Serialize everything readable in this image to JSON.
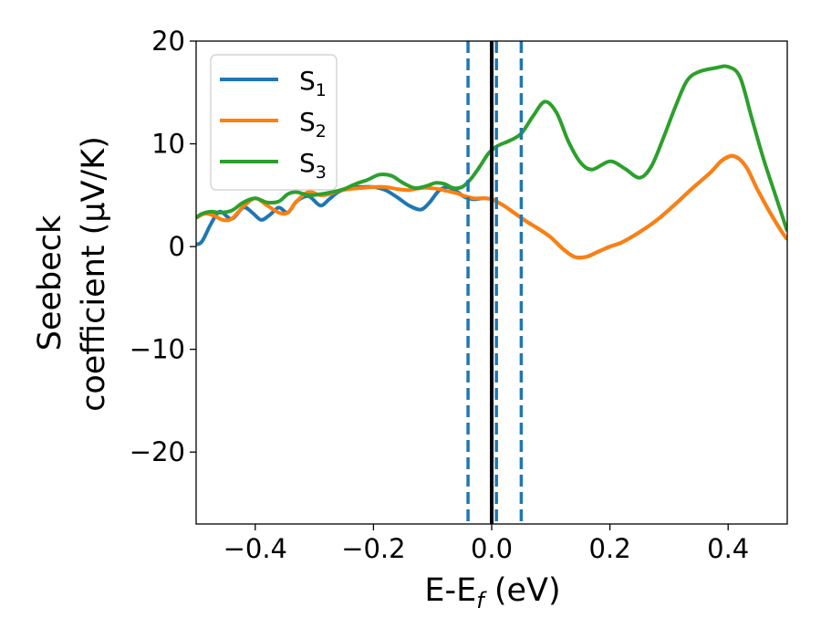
{
  "chart_data": {
    "type": "line",
    "title": "",
    "xlabel": {
      "main": "E-E",
      "sub": "f",
      "unit": " (eV)"
    },
    "ylabel": {
      "line1": "Seebeck",
      "line2": "coefficient  (μV/K)"
    },
    "xlim": [
      -0.5,
      0.5
    ],
    "ylim": [
      -27,
      20
    ],
    "xticks": [
      -0.4,
      -0.2,
      0.0,
      0.2,
      0.4
    ],
    "xtick_labels": [
      "−0.4",
      "−0.2",
      "0.0",
      "0.2",
      "0.4"
    ],
    "yticks": [
      -20,
      -10,
      0,
      10,
      20
    ],
    "ytick_labels": [
      "−20",
      "−10",
      "0",
      "10",
      "20"
    ],
    "grid": false,
    "legend_position": "upper-left",
    "vlines": [
      {
        "x": 0.0,
        "style": "solid",
        "color": "#000000"
      },
      {
        "x": -0.04,
        "style": "dashed",
        "color": "#1f77b4"
      },
      {
        "x": 0.008,
        "style": "dashed",
        "color": "#1f77b4"
      },
      {
        "x": 0.05,
        "style": "dashed",
        "color": "#1f77b4"
      }
    ],
    "series": [
      {
        "name": "S",
        "sub": "1",
        "color": "#1f77b4",
        "x": [
          -0.5,
          -0.49,
          -0.475,
          -0.46,
          -0.44,
          -0.42,
          -0.405,
          -0.39,
          -0.375,
          -0.36,
          -0.345,
          -0.33,
          -0.31,
          -0.29,
          -0.275,
          -0.26,
          -0.24,
          -0.22,
          -0.2,
          -0.18,
          -0.16,
          -0.14,
          -0.12,
          -0.105,
          -0.09,
          -0.075,
          -0.06,
          -0.045,
          -0.03,
          -0.015,
          0.0,
          0.02,
          0.04,
          0.06,
          0.08,
          0.1,
          0.12,
          0.14,
          0.16,
          0.18,
          0.2,
          0.22,
          0.25,
          0.28,
          0.31,
          0.34,
          0.37,
          0.39,
          0.41,
          0.43,
          0.45,
          0.47,
          0.49,
          0.5
        ],
        "y": [
          0.2,
          0.5,
          2.2,
          3.4,
          2.7,
          3.8,
          3.3,
          2.6,
          3.1,
          3.8,
          3.3,
          4.4,
          4.9,
          4.0,
          4.6,
          5.3,
          5.7,
          5.8,
          5.8,
          5.5,
          4.8,
          4.0,
          3.6,
          4.3,
          5.4,
          5.8,
          5.4,
          4.8,
          4.6,
          4.7,
          4.6,
          4.0,
          3.2,
          2.4,
          1.7,
          0.9,
          -0.2,
          -1.0,
          -1.0,
          -0.5,
          0.0,
          0.4,
          1.4,
          2.6,
          4.1,
          5.7,
          7.2,
          8.4,
          8.8,
          7.8,
          5.5,
          3.4,
          1.5,
          0.7
        ]
      },
      {
        "name": "S",
        "sub": "2",
        "color": "#ff7f0e",
        "x": [
          -0.5,
          -0.485,
          -0.47,
          -0.455,
          -0.44,
          -0.42,
          -0.4,
          -0.38,
          -0.36,
          -0.345,
          -0.33,
          -0.31,
          -0.29,
          -0.275,
          -0.26,
          -0.24,
          -0.22,
          -0.2,
          -0.18,
          -0.16,
          -0.14,
          -0.12,
          -0.105,
          -0.09,
          -0.075,
          -0.06,
          -0.045,
          -0.03,
          -0.015,
          0.0,
          0.02,
          0.04,
          0.06,
          0.08,
          0.1,
          0.12,
          0.14,
          0.16,
          0.18,
          0.2,
          0.22,
          0.25,
          0.28,
          0.31,
          0.34,
          0.37,
          0.39,
          0.41,
          0.43,
          0.45,
          0.47,
          0.49,
          0.5
        ],
        "y": [
          2.8,
          3.2,
          3.0,
          2.6,
          2.7,
          3.9,
          4.7,
          4.0,
          3.3,
          3.3,
          4.4,
          5.3,
          5.0,
          5.1,
          5.4,
          5.6,
          5.7,
          5.8,
          5.8,
          5.6,
          5.5,
          5.7,
          5.7,
          5.6,
          5.4,
          5.2,
          4.9,
          4.7,
          4.7,
          4.6,
          4.0,
          3.2,
          2.4,
          1.7,
          0.9,
          -0.2,
          -1.0,
          -1.0,
          -0.5,
          0.0,
          0.4,
          1.4,
          2.6,
          4.1,
          5.7,
          7.2,
          8.4,
          8.8,
          7.8,
          5.5,
          3.4,
          1.5,
          0.7
        ]
      },
      {
        "name": "S",
        "sub": "3",
        "color": "#2ca02c",
        "x": [
          -0.5,
          -0.49,
          -0.475,
          -0.46,
          -0.44,
          -0.42,
          -0.4,
          -0.38,
          -0.36,
          -0.345,
          -0.33,
          -0.31,
          -0.29,
          -0.27,
          -0.25,
          -0.23,
          -0.21,
          -0.19,
          -0.17,
          -0.15,
          -0.13,
          -0.11,
          -0.095,
          -0.08,
          -0.065,
          -0.05,
          -0.035,
          -0.02,
          -0.005,
          0.01,
          0.03,
          0.05,
          0.07,
          0.09,
          0.11,
          0.13,
          0.15,
          0.17,
          0.2,
          0.225,
          0.25,
          0.27,
          0.29,
          0.31,
          0.33,
          0.35,
          0.38,
          0.4,
          0.42,
          0.44,
          0.46,
          0.48,
          0.5
        ],
        "y": [
          2.8,
          3.2,
          3.4,
          3.3,
          3.5,
          4.3,
          4.7,
          4.3,
          4.4,
          5.1,
          5.3,
          5.0,
          5.1,
          5.3,
          5.6,
          6.1,
          6.5,
          7.0,
          6.9,
          6.2,
          5.7,
          5.9,
          6.2,
          6.1,
          5.7,
          5.8,
          6.6,
          7.8,
          9.1,
          9.8,
          10.3,
          11.0,
          12.7,
          14.1,
          13.0,
          10.2,
          8.2,
          7.5,
          8.3,
          7.6,
          6.7,
          7.8,
          10.5,
          13.5,
          16.1,
          17.0,
          17.4,
          17.5,
          16.5,
          12.5,
          8.5,
          5.0,
          1.5
        ]
      }
    ]
  }
}
